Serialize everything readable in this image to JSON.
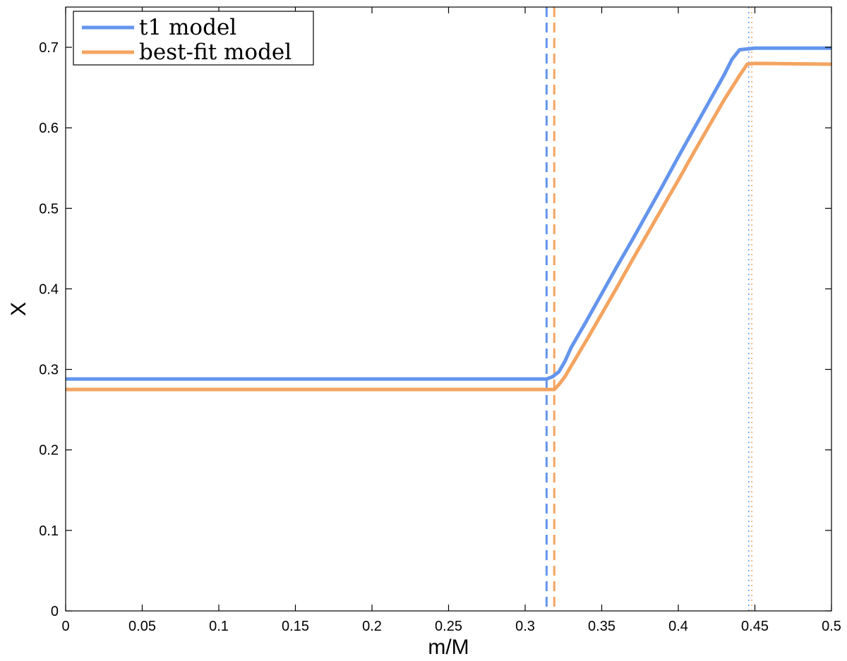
{
  "chart_data": {
    "type": "line",
    "title": "",
    "xlabel": "m/M",
    "ylabel": "X",
    "xlim": [
      0,
      0.5
    ],
    "ylim": [
      0,
      0.75
    ],
    "xticks": [
      0,
      0.05,
      0.1,
      0.15,
      0.2,
      0.25,
      0.3,
      0.35,
      0.4,
      0.45,
      0.5
    ],
    "xtick_labels": [
      "0",
      "0.05",
      "0.1",
      "0.15",
      "0.2",
      "0.25",
      "0.3",
      "0.35",
      "0.4",
      "0.45",
      "0.5"
    ],
    "yticks": [
      0,
      0.1,
      0.2,
      0.3,
      0.4,
      0.5,
      0.6,
      0.7
    ],
    "ytick_labels": [
      "0",
      "0.1",
      "0.2",
      "0.3",
      "0.4",
      "0.5",
      "0.6",
      "0.7"
    ],
    "grid": false,
    "legend_position": "top-left",
    "series": [
      {
        "name": "t1 model",
        "color": "#6495ED",
        "x": [
          0,
          0.314,
          0.318,
          0.322,
          0.326,
          0.33,
          0.34,
          0.35,
          0.36,
          0.37,
          0.38,
          0.39,
          0.4,
          0.41,
          0.42,
          0.43,
          0.435,
          0.44,
          0.45,
          0.5
        ],
        "y": [
          0.288,
          0.288,
          0.291,
          0.297,
          0.31,
          0.327,
          0.36,
          0.394,
          0.428,
          0.461,
          0.495,
          0.529,
          0.564,
          0.598,
          0.632,
          0.666,
          0.685,
          0.697,
          0.699,
          0.699
        ]
      },
      {
        "name": "best-fit model",
        "color": "#F4A460",
        "x": [
          0,
          0.319,
          0.322,
          0.326,
          0.33,
          0.34,
          0.35,
          0.36,
          0.37,
          0.38,
          0.39,
          0.4,
          0.41,
          0.42,
          0.43,
          0.44,
          0.445,
          0.45,
          0.5
        ],
        "y": [
          0.275,
          0.275,
          0.281,
          0.291,
          0.304,
          0.336,
          0.369,
          0.402,
          0.436,
          0.469,
          0.502,
          0.535,
          0.569,
          0.602,
          0.635,
          0.665,
          0.679,
          0.68,
          0.679
        ]
      }
    ],
    "vertical_lines": [
      {
        "x": 0.314,
        "color": "#6495ED",
        "style": "dashed"
      },
      {
        "x": 0.319,
        "color": "#F4A460",
        "style": "dashed"
      },
      {
        "x": 0.446,
        "color": "#6495ED",
        "style": "dotted"
      },
      {
        "x": 0.448,
        "color": "#F4A460",
        "style": "dotted"
      }
    ]
  }
}
